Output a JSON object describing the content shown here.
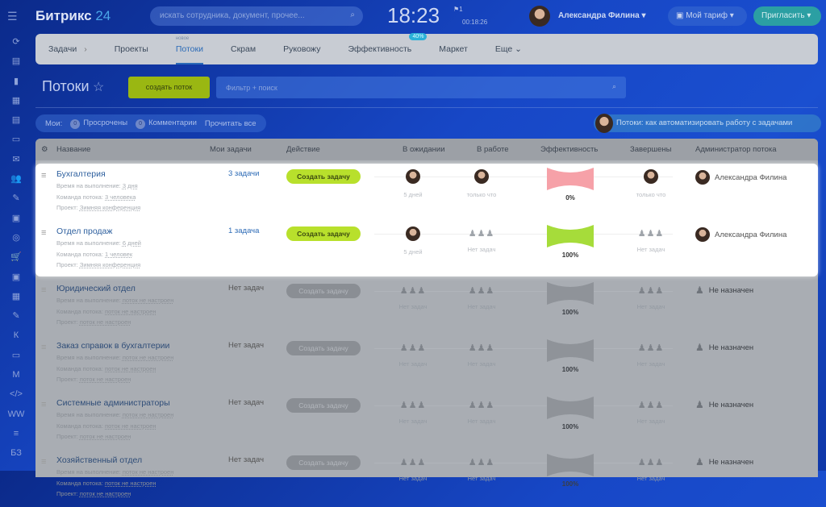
{
  "topbar": {
    "logo": "Битрикс",
    "logo_num": "24",
    "search_placeholder": "искать сотрудника, документ, прочее...",
    "clock": "18:23",
    "flag_count": "1",
    "timer": "00:18:26",
    "user": "Александра Филина",
    "tariff": "Мой тариф",
    "invite": "Пригласить"
  },
  "sidebar": {
    "items": [
      "⟳",
      "▤",
      "▮",
      "▦",
      "▤",
      "▭",
      "✉",
      "👥",
      "✎",
      "▣",
      "◎",
      "🛒",
      "▣",
      "▦",
      "✎",
      "К",
      "▭",
      "M",
      "</>",
      "WW",
      "≡",
      "БЗ"
    ]
  },
  "nav": {
    "items": [
      "Задачи",
      "Проекты",
      "Потоки",
      "Скрам",
      "Руковожу",
      "Эффективность",
      "Маркет",
      "Еще ⌄"
    ],
    "active": 2,
    "new_label": "новое",
    "eff_badge": "40%"
  },
  "page": {
    "title": "Потоки",
    "create_button": "создать поток",
    "filter_placeholder": "Фильтр + поиск"
  },
  "counters": {
    "my_label": "Мои:",
    "overdue_count": "0",
    "overdue": "Просрочены",
    "comments_count": "0",
    "comments": "Комментарии",
    "read_all": "Прочитать все"
  },
  "help": "Потоки: как автоматизировать работу с задачами",
  "columns": [
    "Название",
    "Мои задачи",
    "Действие",
    "В ожидании",
    "В работе",
    "Эффективность",
    "Завершены",
    "Администратор потока"
  ],
  "colors": {
    "accent_green": "#b8e02c",
    "eff_bad": "#f6a1a8",
    "eff_good": "#a6dc3a",
    "link": "#2d6bb6"
  },
  "rows": [
    {
      "name": "Бухгалтерия",
      "time_label": "Время на выполнение:",
      "time": "3 дня",
      "team_label": "Команда потока:",
      "team": "3 человека",
      "project_label": "Проект:",
      "project": "Зимняя конференция",
      "my_tasks": "3 задачи",
      "action": "Создать задачу",
      "waiting": {
        "avatar": true,
        "text": "5 дней"
      },
      "work": {
        "avatar": true,
        "text": "только что"
      },
      "efficiency": "0%",
      "done": {
        "avatar": true,
        "text": "только что"
      },
      "admin": "Александра Филина",
      "highlighted": true
    },
    {
      "name": "Отдел продаж",
      "time_label": "Время на выполнение:",
      "time": "6 дней",
      "team_label": "Команда потока:",
      "team": "1 человек",
      "project_label": "Проект:",
      "project": "Зимняя конференция",
      "my_tasks": "1 задача",
      "action": "Создать задачу",
      "waiting": {
        "avatar": true,
        "text": "5 дней"
      },
      "work": {
        "avatar": false,
        "text": "Нет задач"
      },
      "efficiency": "100%",
      "done": {
        "avatar": false,
        "text": "Нет задач"
      },
      "admin": "Александра Филина",
      "highlighted": true
    },
    {
      "name": "Юридический отдел",
      "time_label": "Время на выполнение:",
      "time": "поток не настроен",
      "team_label": "Команда потока:",
      "team": "поток не настроен",
      "project_label": "Проект:",
      "project": "поток не настроен",
      "my_tasks": "Нет задач",
      "action": "Создать задачу",
      "waiting": {
        "avatar": false,
        "text": "Нет задач"
      },
      "work": {
        "avatar": false,
        "text": "Нет задач"
      },
      "efficiency": "100%",
      "done": {
        "avatar": false,
        "text": "Нет задач"
      },
      "admin": "Не назначен",
      "highlighted": false
    },
    {
      "name": "Заказ справок в бухгалтерии",
      "time_label": "Время на выполнение:",
      "time": "поток не настроен",
      "team_label": "Команда потока:",
      "team": "поток не настроен",
      "project_label": "Проект:",
      "project": "поток не настроен",
      "my_tasks": "Нет задач",
      "action": "Создать задачу",
      "waiting": {
        "avatar": false,
        "text": "Нет задач"
      },
      "work": {
        "avatar": false,
        "text": "Нет задач"
      },
      "efficiency": "100%",
      "done": {
        "avatar": false,
        "text": "Нет задач"
      },
      "admin": "Не назначен",
      "highlighted": false
    },
    {
      "name": "Системные администраторы",
      "time_label": "Время на выполнение:",
      "time": "поток не настроен",
      "team_label": "Команда потока:",
      "team": "поток не настроен",
      "project_label": "Проект:",
      "project": "поток не настроен",
      "my_tasks": "Нет задач",
      "action": "Создать задачу",
      "waiting": {
        "avatar": false,
        "text": "Нет задач"
      },
      "work": {
        "avatar": false,
        "text": "Нет задач"
      },
      "efficiency": "100%",
      "done": {
        "avatar": false,
        "text": "Нет задач"
      },
      "admin": "Не назначен",
      "highlighted": false
    },
    {
      "name": "Хозяйственный отдел",
      "time_label": "Время на выполнение:",
      "time": "поток не настроен",
      "team_label": "Команда потока:",
      "team": "поток не настроен",
      "project_label": "Проект:",
      "project": "поток не настроен",
      "my_tasks": "Нет задач",
      "action": "Создать задачу",
      "waiting": {
        "avatar": false,
        "text": "Нет задач"
      },
      "work": {
        "avatar": false,
        "text": "Нет задач"
      },
      "efficiency": "100%",
      "done": {
        "avatar": false,
        "text": "Нет задач"
      },
      "admin": "Не назначен",
      "highlighted": false
    }
  ]
}
